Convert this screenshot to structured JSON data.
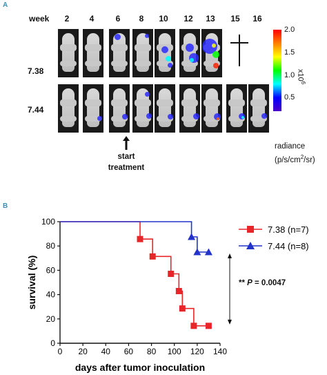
{
  "panel_a": {
    "letter": "A",
    "week_label": "week",
    "weeks": [
      "2",
      "4",
      "6",
      "8",
      "10",
      "12",
      "13",
      "15",
      "16"
    ],
    "rows": [
      {
        "label": "7.38",
        "mice": [
          true,
          true,
          true,
          true,
          true,
          true,
          true,
          false,
          false
        ],
        "deceased_marker": "†"
      },
      {
        "label": "7.44",
        "mice": [
          true,
          true,
          true,
          true,
          true,
          true,
          true,
          true,
          true
        ]
      }
    ],
    "arrow_label_line1": "start",
    "arrow_label_line2": "treatment",
    "colorbar": {
      "ticks": [
        "2.0",
        "1.5",
        "1.0",
        "0.5"
      ],
      "multiplier": "x10",
      "multiplier_exp": "6",
      "label_line1": "radiance",
      "label_line2_pre": "(p/s/cm",
      "label_line2_sup": "2",
      "label_line2_post": "/sr)",
      "colors": [
        "#ff0000",
        "#ffff00",
        "#00ff00",
        "#00ffff",
        "#0000ff"
      ]
    }
  },
  "panel_b": {
    "letter": "B",
    "annotation_prefix": "** ",
    "annotation_p": "P",
    "annotation_rest": " = 0.0047"
  },
  "chart_data": {
    "type": "line",
    "title": "",
    "xlabel": "days after tumor inoculation",
    "ylabel": "survival (%)",
    "xlim": [
      0,
      140
    ],
    "ylim": [
      0,
      100
    ],
    "xticks": [
      "0",
      "20",
      "40",
      "60",
      "80",
      "100",
      "120",
      "140"
    ],
    "yticks": [
      "0",
      "20",
      "40",
      "60",
      "80",
      "100"
    ],
    "step": true,
    "series": [
      {
        "name": "7.38 (n=7)",
        "color": "#e8262a",
        "marker": "square",
        "x": [
          0,
          70,
          81,
          97,
          104,
          107,
          117,
          130
        ],
        "y": [
          100,
          85.7,
          71.4,
          57.1,
          42.9,
          28.6,
          14.3,
          14.3
        ]
      },
      {
        "name": "7.44 (n=8)",
        "color": "#2233cc",
        "marker": "triangle",
        "x": [
          0,
          115,
          120,
          130
        ],
        "y": [
          100,
          87.5,
          75,
          75
        ]
      }
    ]
  }
}
